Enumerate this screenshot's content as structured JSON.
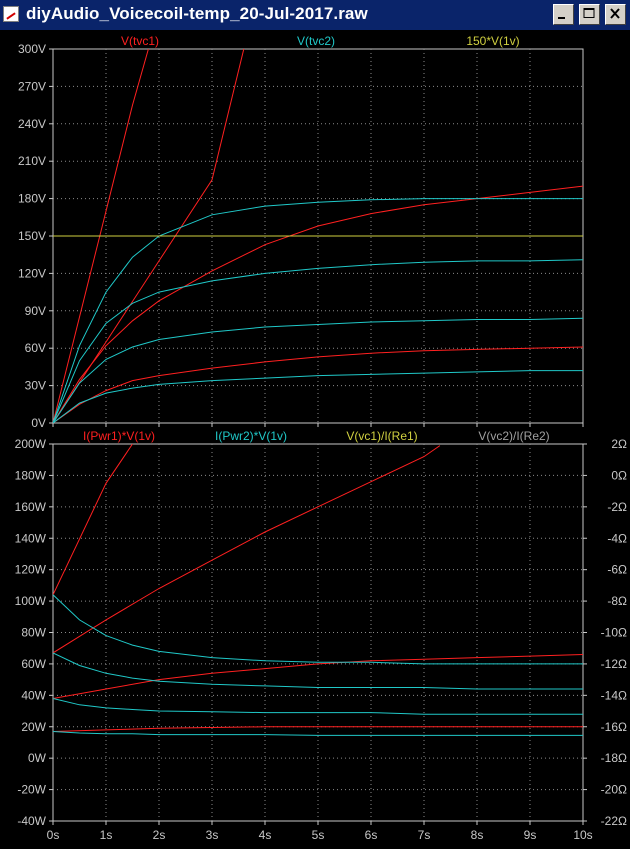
{
  "window": {
    "title": "diyAudio_Voicecoil-temp_20-Jul-2017.raw",
    "minimize_icon": "minimize-icon",
    "maximize_icon": "maximize-icon",
    "close_icon": "close-icon"
  },
  "colors": {
    "red": "#ff2020",
    "cyan": "#20c8c8",
    "yellow": "#d0d040",
    "gray": "#a0a0a0",
    "axis": "#c8c8c8",
    "background": "#000000",
    "title_bar": "#0a246a"
  },
  "chart_data": [
    {
      "type": "line",
      "title": "",
      "legend": [
        {
          "label": "V(tvc1)",
          "color": "#ff2020"
        },
        {
          "label": "V(tvc2)",
          "color": "#20c8c8"
        },
        {
          "label": "150*V(1v)",
          "color": "#d0d040"
        }
      ],
      "ylim": [
        0,
        300
      ],
      "y_ticks": [
        "0V",
        "30V",
        "60V",
        "90V",
        "120V",
        "150V",
        "180V",
        "210V",
        "240V",
        "270V",
        "300V"
      ],
      "xlim": [
        0,
        10
      ],
      "series": [
        {
          "color": "#ff2020",
          "x": [
            0,
            0.5,
            1,
            1.5,
            1.8
          ],
          "y": [
            0,
            85,
            170,
            255,
            300
          ]
        },
        {
          "color": "#ff2020",
          "x": [
            0,
            1,
            2,
            3,
            3.6
          ],
          "y": [
            0,
            65,
            130,
            195,
            300
          ]
        },
        {
          "color": "#ff2020",
          "x": [
            0,
            0.5,
            1,
            1.5,
            2,
            3,
            4,
            5,
            6,
            7,
            8,
            9,
            10
          ],
          "y": [
            0,
            35,
            62,
            82,
            98,
            122,
            143,
            158,
            168,
            175,
            180,
            185,
            190
          ]
        },
        {
          "color": "#ff2020",
          "x": [
            0,
            0.5,
            1,
            1.5,
            2,
            3,
            4,
            5,
            6,
            7,
            8,
            9,
            10
          ],
          "y": [
            0,
            15,
            26,
            34,
            38,
            44,
            49,
            53,
            56,
            58,
            59,
            60,
            61
          ]
        },
        {
          "color": "#20c8c8",
          "x": [
            0,
            0.5,
            1,
            1.5,
            2,
            3,
            4,
            5,
            6,
            7,
            8,
            9,
            10
          ],
          "y": [
            0,
            62,
            105,
            133,
            150,
            167,
            174,
            177,
            179,
            180,
            180,
            180,
            180
          ]
        },
        {
          "color": "#20c8c8",
          "x": [
            0,
            0.5,
            1,
            1.5,
            2,
            3,
            4,
            5,
            6,
            7,
            8,
            9,
            10
          ],
          "y": [
            0,
            50,
            80,
            96,
            105,
            114,
            120,
            124,
            127,
            129,
            130,
            130,
            131
          ]
        },
        {
          "color": "#20c8c8",
          "x": [
            0,
            0.5,
            1,
            1.5,
            2,
            3,
            4,
            5,
            6,
            7,
            8,
            9,
            10
          ],
          "y": [
            0,
            32,
            51,
            61,
            67,
            73,
            77,
            79,
            81,
            82,
            83,
            83,
            84
          ]
        },
        {
          "color": "#20c8c8",
          "x": [
            0,
            0.5,
            1,
            1.5,
            2,
            3,
            4,
            5,
            6,
            7,
            8,
            9,
            10
          ],
          "y": [
            0,
            16,
            24,
            28,
            31,
            34,
            36,
            38,
            39,
            40,
            41,
            42,
            42
          ]
        },
        {
          "color": "#d0d040",
          "x": [
            0,
            10
          ],
          "y": [
            150,
            150
          ]
        }
      ]
    },
    {
      "type": "line",
      "title": "",
      "legend": [
        {
          "label": "I(Pwr1)*V(1v)",
          "color": "#ff2020"
        },
        {
          "label": "I(Pwr2)*V(1v)",
          "color": "#20c8c8"
        },
        {
          "label": "V(vc1)/I(Re1)",
          "color": "#d0d040"
        },
        {
          "label": "V(vc2)/I(Re2)",
          "color": "#a0a0a0"
        }
      ],
      "ylim": [
        -40,
        200
      ],
      "y_ticks": [
        "-40W",
        "-20W",
        "0W",
        "20W",
        "40W",
        "60W",
        "80W",
        "100W",
        "120W",
        "140W",
        "160W",
        "180W",
        "200W"
      ],
      "y2lim": [
        -22,
        2
      ],
      "y2_ticks": [
        "-22Ω",
        "-20Ω",
        "-18Ω",
        "-16Ω",
        "-14Ω",
        "-12Ω",
        "-10Ω",
        "-8Ω",
        "-6Ω",
        "-4Ω",
        "-2Ω",
        "0Ω",
        "2Ω"
      ],
      "xlim": [
        0,
        10
      ],
      "x_ticks": [
        "0s",
        "1s",
        "2s",
        "3s",
        "4s",
        "5s",
        "6s",
        "7s",
        "8s",
        "9s",
        "10s"
      ],
      "series": [
        {
          "color": "#ff2020",
          "x": [
            0,
            1,
            1.5
          ],
          "y": [
            104,
            175,
            200
          ]
        },
        {
          "color": "#ff2020",
          "x": [
            0,
            1,
            2,
            3,
            4,
            5,
            6,
            7,
            7.3
          ],
          "y": [
            67,
            88,
            108,
            126,
            144,
            160,
            176,
            192,
            199
          ]
        },
        {
          "color": "#ff2020",
          "x": [
            0,
            1,
            2,
            3,
            4,
            5,
            6,
            7,
            8,
            9,
            10
          ],
          "y": [
            38,
            44,
            50,
            54,
            57,
            60,
            62,
            63,
            64,
            65,
            66
          ]
        },
        {
          "color": "#ff2020",
          "x": [
            0,
            1,
            2,
            3,
            4,
            5,
            6,
            7,
            8,
            9,
            10
          ],
          "y": [
            17,
            18,
            19,
            19.5,
            20,
            20,
            20,
            20,
            20,
            20,
            20
          ]
        },
        {
          "color": "#20c8c8",
          "x": [
            0,
            0.5,
            1,
            1.5,
            2,
            3,
            4,
            5,
            6,
            7,
            8,
            9,
            10
          ],
          "y": [
            104,
            88,
            78,
            72,
            68,
            64,
            62,
            61,
            61,
            60,
            60,
            60,
            60
          ]
        },
        {
          "color": "#20c8c8",
          "x": [
            0,
            0.5,
            1,
            1.5,
            2,
            3,
            4,
            5,
            6,
            7,
            8,
            9,
            10
          ],
          "y": [
            67,
            59,
            54,
            51,
            49,
            47,
            46,
            45,
            45,
            45,
            44,
            44,
            44
          ]
        },
        {
          "color": "#20c8c8",
          "x": [
            0,
            0.5,
            1,
            1.5,
            2,
            3,
            4,
            5,
            6,
            7,
            8,
            9,
            10
          ],
          "y": [
            38,
            34,
            32,
            31,
            30,
            29.5,
            29,
            29,
            29,
            28,
            28,
            28,
            28
          ]
        },
        {
          "color": "#20c8c8",
          "x": [
            0,
            0.5,
            1,
            1.5,
            2,
            3,
            4,
            5,
            6,
            7,
            8,
            9,
            10
          ],
          "y": [
            17,
            16,
            15.5,
            15.5,
            15,
            15,
            15,
            14.5,
            14.5,
            14.5,
            14.5,
            14.5,
            14.5
          ]
        }
      ]
    }
  ]
}
